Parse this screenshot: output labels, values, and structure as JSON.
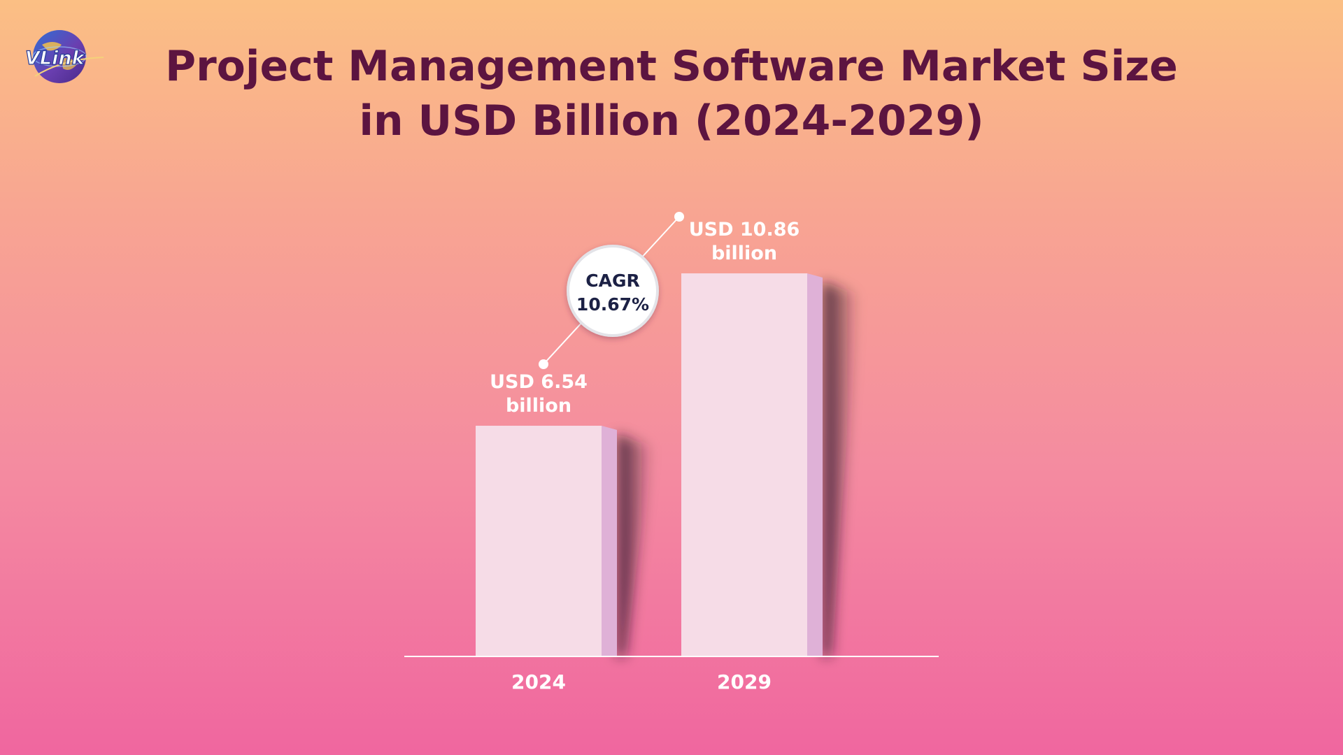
{
  "title": {
    "line1": "Project Management Software Market Size",
    "line2": "in USD Billion (2024-2029)"
  },
  "logo": {
    "text": "VLink",
    "icon": "globe-icon"
  },
  "colors": {
    "title": "#5c1440",
    "bar_face": "#f6dce7",
    "bar_side": "#dfb1d7",
    "label": "#ffffff",
    "cagr_text": "#1c2145"
  },
  "chart_data": {
    "type": "bar",
    "categories": [
      "2024",
      "2029"
    ],
    "values": [
      6.54,
      10.86
    ],
    "value_labels": [
      [
        "USD 6.54",
        "billion"
      ],
      [
        "USD 10.86",
        "billion"
      ]
    ],
    "annotation": {
      "label": "CAGR",
      "value": "10.67%"
    },
    "title": "Project Management Software Market Size in USD Billion (2024-2029)",
    "xlabel": "",
    "ylabel": "",
    "ylim": [
      0,
      12
    ],
    "grid": false,
    "legend": "none"
  }
}
